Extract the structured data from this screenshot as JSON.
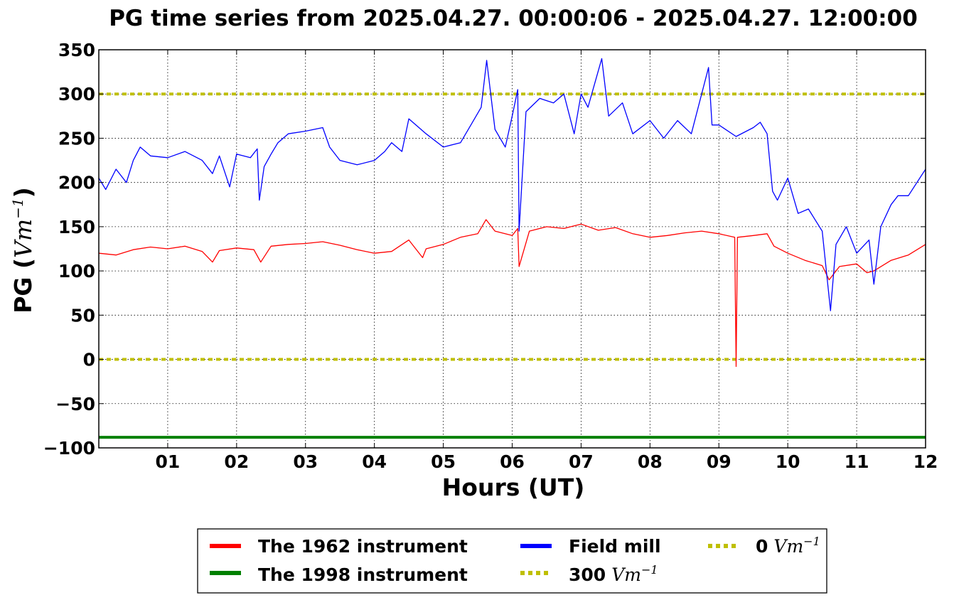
{
  "chart_data": {
    "type": "line",
    "title": "PG time series from 2025.04.27. 00:00:06 - 2025.04.27. 12:00:00",
    "xlabel": "Hours (UT)",
    "ylabel": "PG (",
    "ylabel_unit": "Vm",
    "ylabel_unit_exp": "−1",
    "ylabel_close": ")",
    "x_unit": "hours UT",
    "xlim": [
      0,
      12
    ],
    "ylim": [
      -100,
      350
    ],
    "x_ticks": [
      1,
      2,
      3,
      4,
      5,
      6,
      7,
      8,
      9,
      10,
      11,
      12
    ],
    "x_tick_labels": [
      "01",
      "02",
      "03",
      "04",
      "05",
      "06",
      "07",
      "08",
      "09",
      "10",
      "11",
      "12"
    ],
    "y_ticks": [
      -100,
      -50,
      0,
      50,
      100,
      150,
      200,
      250,
      300,
      350
    ],
    "y_tick_labels": [
      "−100",
      "−50",
      "0",
      "50",
      "100",
      "150",
      "200",
      "250",
      "300",
      "350"
    ],
    "grid": true,
    "legend_position": "below plot, centered, 3 columns",
    "series": [
      {
        "name": "The 1962 instrument",
        "color": "#ff0000",
        "x": [
          0.0,
          0.25,
          0.5,
          0.75,
          1.0,
          1.25,
          1.5,
          1.65,
          1.75,
          2.0,
          2.25,
          2.35,
          2.5,
          2.75,
          3.0,
          3.25,
          3.5,
          3.75,
          4.0,
          4.25,
          4.5,
          4.7,
          4.75,
          5.0,
          5.25,
          5.5,
          5.62,
          5.75,
          6.0,
          6.08,
          6.1,
          6.25,
          6.5,
          6.75,
          7.0,
          7.25,
          7.5,
          7.75,
          8.0,
          8.25,
          8.5,
          8.75,
          9.0,
          9.23,
          9.25,
          9.27,
          9.5,
          9.7,
          9.8,
          10.0,
          10.25,
          10.5,
          10.6,
          10.75,
          11.0,
          11.15,
          11.25,
          11.5,
          11.75,
          12.0
        ],
        "y": [
          120,
          118,
          124,
          127,
          125,
          128,
          122,
          110,
          123,
          126,
          124,
          110,
          128,
          130,
          131,
          133,
          129,
          124,
          120,
          122,
          135,
          115,
          125,
          130,
          138,
          142,
          158,
          145,
          140,
          148,
          105,
          145,
          150,
          148,
          153,
          146,
          149,
          142,
          138,
          140,
          143,
          145,
          142,
          138,
          -8,
          138,
          140,
          142,
          128,
          120,
          112,
          106,
          90,
          105,
          108,
          98,
          100,
          112,
          118,
          130
        ]
      },
      {
        "name": "The 1998 instrument",
        "color": "#008000",
        "x": [
          0,
          12
        ],
        "y": [
          -88,
          -88
        ]
      },
      {
        "name": "Field mill",
        "color": "#0000ff",
        "x": [
          0.0,
          0.1,
          0.25,
          0.4,
          0.5,
          0.6,
          0.75,
          1.0,
          1.25,
          1.5,
          1.65,
          1.75,
          1.9,
          2.0,
          2.2,
          2.3,
          2.33,
          2.4,
          2.5,
          2.6,
          2.75,
          3.0,
          3.25,
          3.35,
          3.5,
          3.75,
          4.0,
          4.15,
          4.25,
          4.4,
          4.5,
          4.75,
          5.0,
          5.25,
          5.4,
          5.55,
          5.63,
          5.75,
          5.9,
          6.0,
          6.08,
          6.1,
          6.2,
          6.4,
          6.6,
          6.75,
          6.9,
          7.0,
          7.1,
          7.3,
          7.4,
          7.6,
          7.75,
          8.0,
          8.2,
          8.4,
          8.6,
          8.85,
          8.9,
          9.0,
          9.25,
          9.5,
          9.6,
          9.7,
          9.78,
          9.85,
          10.0,
          10.15,
          10.3,
          10.5,
          10.62,
          10.7,
          10.85,
          11.0,
          11.18,
          11.25,
          11.35,
          11.5,
          11.6,
          11.75,
          12.0
        ],
        "y": [
          205,
          192,
          215,
          200,
          225,
          240,
          230,
          228,
          235,
          225,
          210,
          230,
          195,
          232,
          228,
          238,
          180,
          218,
          232,
          245,
          255,
          258,
          262,
          240,
          225,
          220,
          225,
          235,
          245,
          235,
          272,
          255,
          240,
          245,
          265,
          285,
          338,
          260,
          240,
          275,
          305,
          145,
          280,
          295,
          290,
          300,
          255,
          300,
          285,
          340,
          275,
          290,
          255,
          270,
          250,
          270,
          255,
          330,
          265,
          265,
          252,
          262,
          268,
          255,
          190,
          180,
          205,
          165,
          170,
          145,
          55,
          130,
          150,
          120,
          135,
          85,
          150,
          175,
          185,
          185,
          215
        ]
      }
    ],
    "reference_lines": [
      {
        "name": "300",
        "unit": "Vm",
        "unit_exp": "−1",
        "y": 300,
        "color": "#bfbf00",
        "style": "dotted"
      },
      {
        "name": "0",
        "unit": "Vm",
        "unit_exp": "−1",
        "y": 0,
        "color": "#bfbf00",
        "style": "dotted"
      }
    ]
  }
}
